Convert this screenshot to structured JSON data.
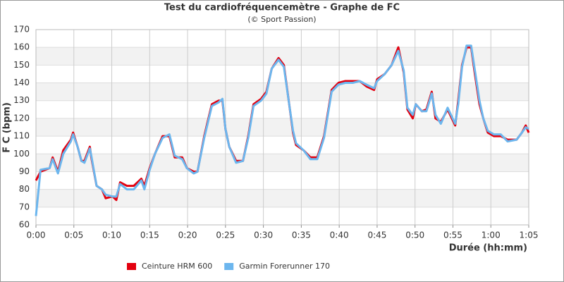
{
  "chart_data": {
    "type": "line",
    "title": "Test du cardiofréquencemètre - Graphe de FC",
    "subtitle": "(© Sport Passion)",
    "x_label": "Durée (hh:mm)",
    "y_label": "F C (bpm)",
    "x": [
      0,
      0.6,
      1.8,
      2.2,
      2.9,
      3.6,
      4.6,
      4.9,
      5.5,
      6,
      6.4,
      7.1,
      7.3,
      8,
      8.7,
      9.2,
      10.1,
      10.6,
      11.1,
      12,
      12.9,
      13.9,
      14.3,
      15,
      15.7,
      16.7,
      17.6,
      18.3,
      19.3,
      19.9,
      20.8,
      21.3,
      22.2,
      23.2,
      24.1,
      24.6,
      25,
      25.5,
      26.4,
      27.3,
      28,
      28.7,
      29.7,
      30.4,
      31.1,
      32,
      32.7,
      33.4,
      33.9,
      34.3,
      35.3,
      36.2,
      37.1,
      38,
      39,
      39.9,
      40.8,
      41.8,
      42.7,
      43.6,
      44.6,
      45,
      46,
      46.9,
      47.8,
      48.5,
      49,
      49.7,
      50.1,
      50.9,
      51.5,
      52.2,
      52.7,
      53.4,
      54.3,
      55.3,
      55.7,
      56.2,
      56.8,
      57.4,
      57.9,
      58.5,
      59,
      59.6,
      60.4,
      61.3,
      62.2,
      63.4,
      64.1,
      64.6,
      65
    ],
    "series": [
      {
        "name": "Ceinture HRM 600",
        "color": "#e3000f",
        "values": [
          85,
          90,
          92,
          98,
          90,
          102,
          108,
          112,
          104,
          96,
          96,
          104,
          98,
          82,
          80,
          75,
          76,
          74,
          84,
          82,
          82,
          86,
          82,
          92,
          100,
          110,
          110,
          98,
          98,
          92,
          90,
          90,
          110,
          128,
          130,
          130,
          114,
          104,
          96,
          96,
          110,
          128,
          131,
          135,
          148,
          154,
          150,
          128,
          112,
          105,
          102,
          98,
          98,
          110,
          136,
          140,
          141,
          141,
          141,
          138,
          136,
          142,
          145,
          150,
          160,
          146,
          125,
          120,
          128,
          124,
          125,
          135,
          120,
          118,
          125,
          116,
          130,
          150,
          160,
          160,
          145,
          128,
          120,
          112,
          110,
          110,
          108,
          108,
          112,
          116,
          112
        ]
      },
      {
        "name": "Garmin Forerunner 170",
        "color": "#6cb6ee",
        "values": [
          65,
          91,
          92,
          97,
          89,
          100,
          107,
          111,
          104,
          96,
          95,
          103,
          99,
          82,
          80,
          77,
          76,
          76,
          83,
          80,
          80,
          85,
          80,
          91,
          100,
          109,
          111,
          99,
          97,
          92,
          89,
          90,
          109,
          127,
          129,
          131,
          114,
          104,
          95,
          96,
          109,
          127,
          130,
          134,
          148,
          153,
          149,
          128,
          113,
          106,
          102,
          97,
          97,
          109,
          135,
          139,
          140,
          140,
          141,
          139,
          137,
          141,
          145,
          150,
          158,
          147,
          126,
          122,
          128,
          124,
          124,
          134,
          122,
          117,
          126,
          117,
          128,
          149,
          161,
          161,
          147,
          130,
          120,
          113,
          111,
          111,
          107,
          108,
          112,
          115,
          114
        ]
      }
    ],
    "xlim": [
      0,
      65
    ],
    "xticks": [
      {
        "value": 0,
        "label": "0:00"
      },
      {
        "value": 5,
        "label": "0:05"
      },
      {
        "value": 10,
        "label": "0:10"
      },
      {
        "value": 15,
        "label": "0:15"
      },
      {
        "value": 20,
        "label": "0:20"
      },
      {
        "value": 25,
        "label": "0:25"
      },
      {
        "value": 30,
        "label": "0:30"
      },
      {
        "value": 35,
        "label": "0:35"
      },
      {
        "value": 40,
        "label": "0:40"
      },
      {
        "value": 45,
        "label": "0:45"
      },
      {
        "value": 50,
        "label": "0:50"
      },
      {
        "value": 55,
        "label": "0:55"
      },
      {
        "value": 60,
        "label": "1:00"
      },
      {
        "value": 65,
        "label": "1:05"
      }
    ],
    "ylim": [
      60,
      170
    ],
    "yticks": [
      60,
      70,
      80,
      90,
      100,
      110,
      120,
      130,
      140,
      150,
      160,
      170
    ],
    "grid": true
  }
}
